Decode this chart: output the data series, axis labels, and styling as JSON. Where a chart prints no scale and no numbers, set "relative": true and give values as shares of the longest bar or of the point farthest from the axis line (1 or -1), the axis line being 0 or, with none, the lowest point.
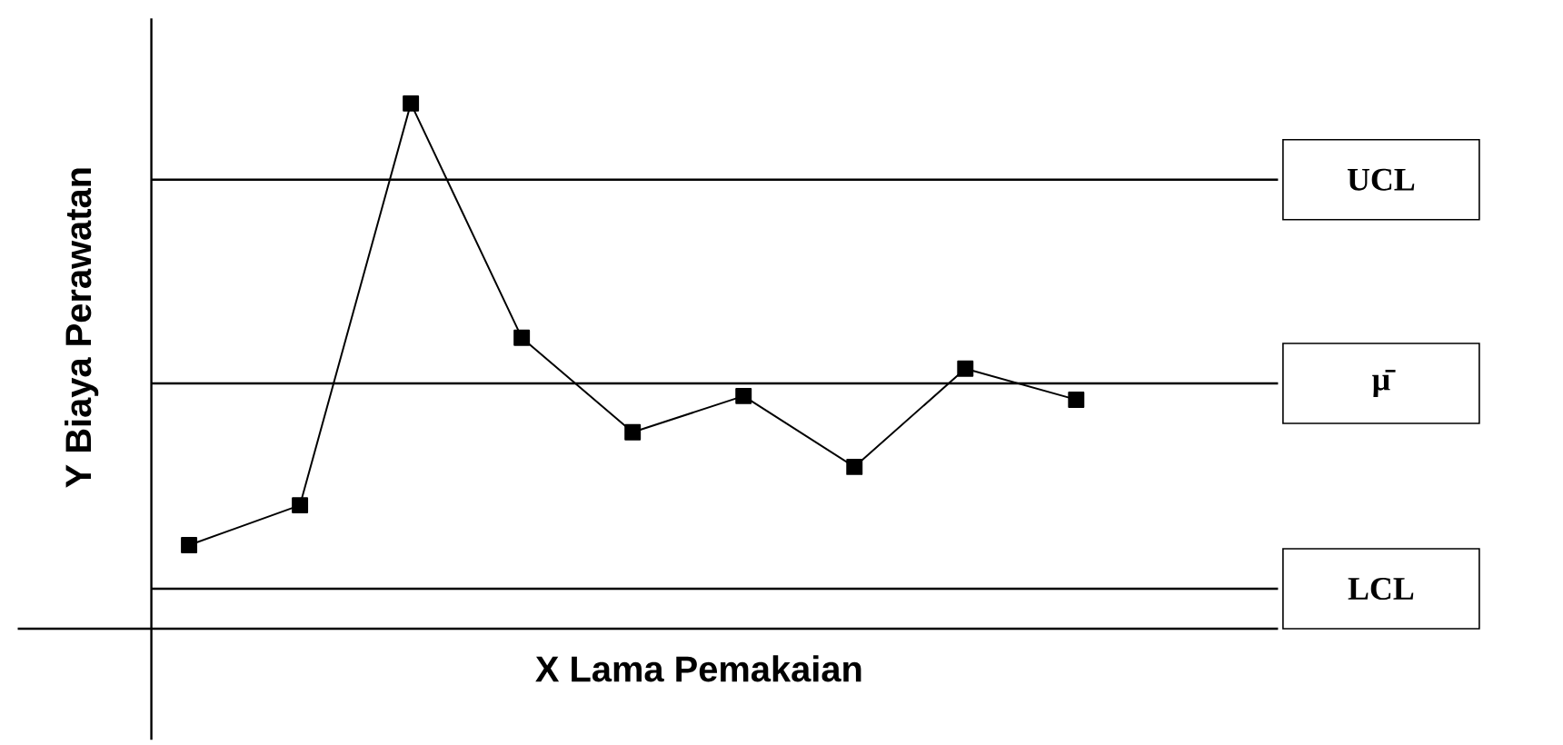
{
  "chart_data": {
    "type": "line",
    "relative": true,
    "xlabel": "X Lama Pemakaian",
    "ylabel": "Y Biaya Perawatan",
    "categories": [
      null,
      null,
      null,
      null,
      null,
      null,
      null,
      null,
      null
    ],
    "series": [
      {
        "color": "#000000",
        "values": [
          0.159,
          0.235,
          1.0,
          0.554,
          0.374,
          0.443,
          0.308,
          0.495,
          0.436
        ]
      }
    ],
    "marker": "square",
    "line_style": "solid",
    "ref_lines": [
      {
        "axis": "y",
        "value": 0.855,
        "label": "UCL",
        "color": "#000000"
      },
      {
        "axis": "y",
        "value": 0.467,
        "label": "μ̄",
        "color": "#000000"
      },
      {
        "axis": "y",
        "value": 0.076,
        "label": "LCL",
        "color": "#000000"
      }
    ]
  }
}
